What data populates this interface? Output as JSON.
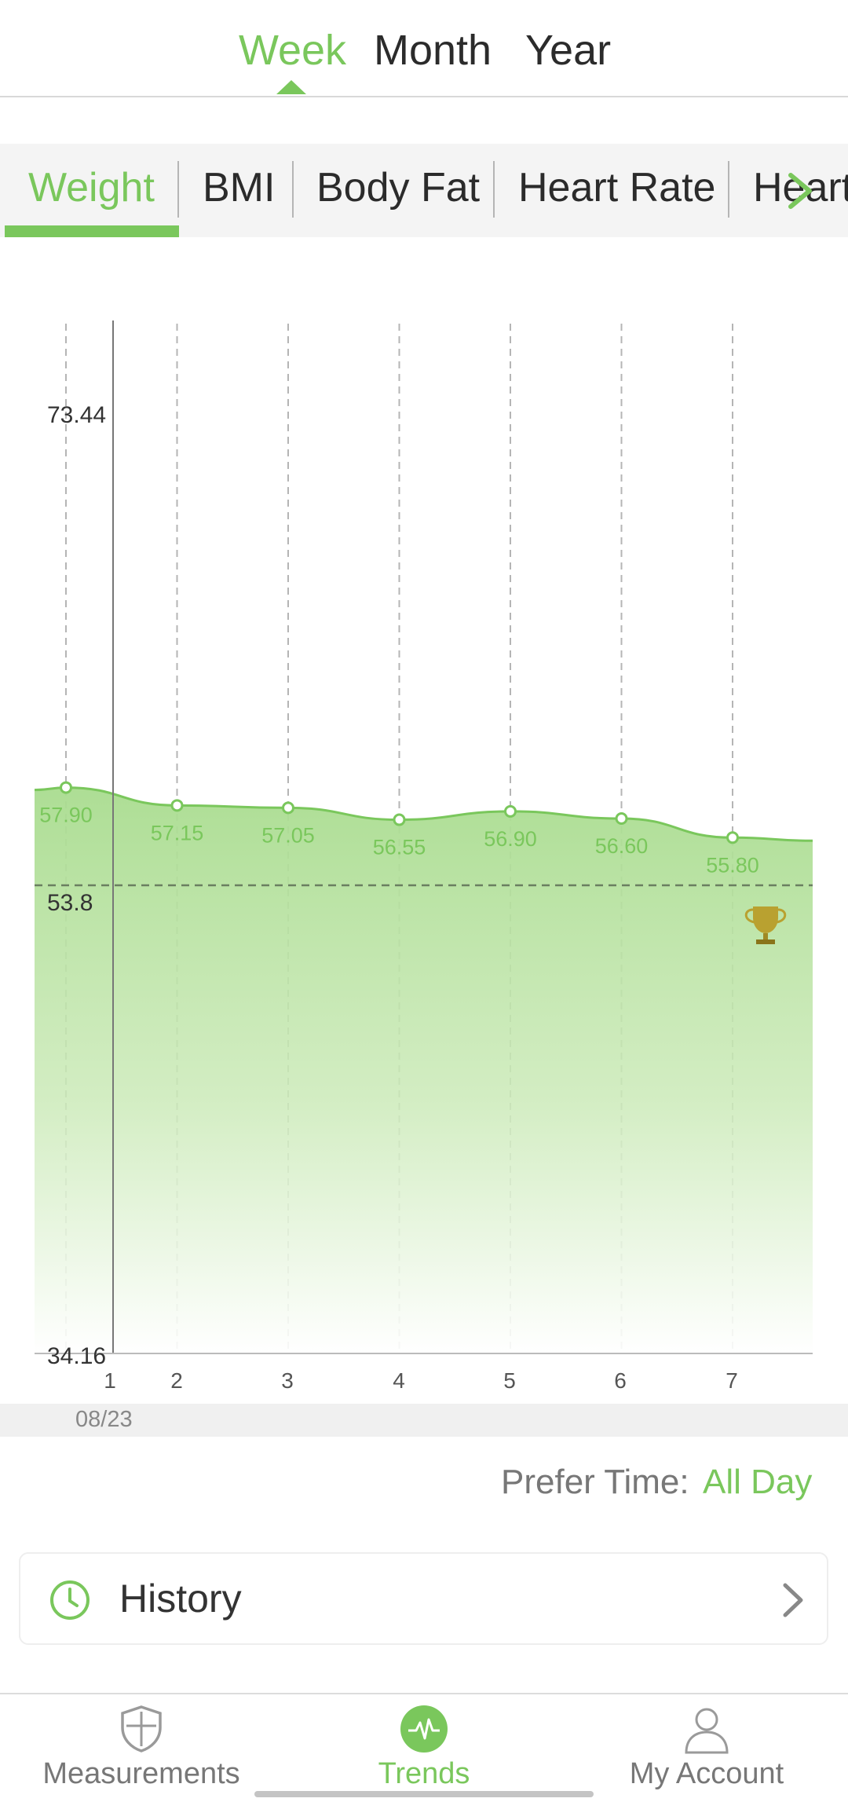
{
  "period_tabs": {
    "week": "Week",
    "month": "Month",
    "year": "Year",
    "active": "Week"
  },
  "metric_tabs": {
    "items": [
      "Weight",
      "BMI",
      "Body Fat",
      "Heart Rate",
      "Heart"
    ],
    "active": "Weight"
  },
  "chart_data": {
    "type": "area",
    "x": [
      1,
      2,
      3,
      4,
      5,
      6,
      7
    ],
    "tick_labels": [
      "1",
      "2",
      "3",
      "4",
      "5",
      "6",
      "7"
    ],
    "values": [
      57.9,
      57.15,
      57.05,
      56.55,
      56.9,
      56.6,
      55.8
    ],
    "value_labels": [
      "57.90",
      "57.15",
      "57.05",
      "56.55",
      "56.90",
      "56.60",
      "55.80"
    ],
    "y_labels": [
      "73.44",
      "53.8",
      "34.16"
    ],
    "ylim": [
      34.16,
      73.44
    ],
    "goal": 53.8,
    "grid": "vertical dashed",
    "color": "#7ac75c",
    "date_label": "08/23"
  },
  "prefer_time": {
    "label": "Prefer Time:",
    "value": "All Day"
  },
  "history": {
    "label": "History"
  },
  "bottom_nav": {
    "items": [
      {
        "label": "Measurements",
        "icon": "shield-icon"
      },
      {
        "label": "Trends",
        "icon": "pulse-icon"
      },
      {
        "label": "My Account",
        "icon": "person-icon"
      }
    ],
    "active": "Trends"
  },
  "colors": {
    "accent": "#7ac75c",
    "text": "#333333",
    "muted": "#777777"
  }
}
